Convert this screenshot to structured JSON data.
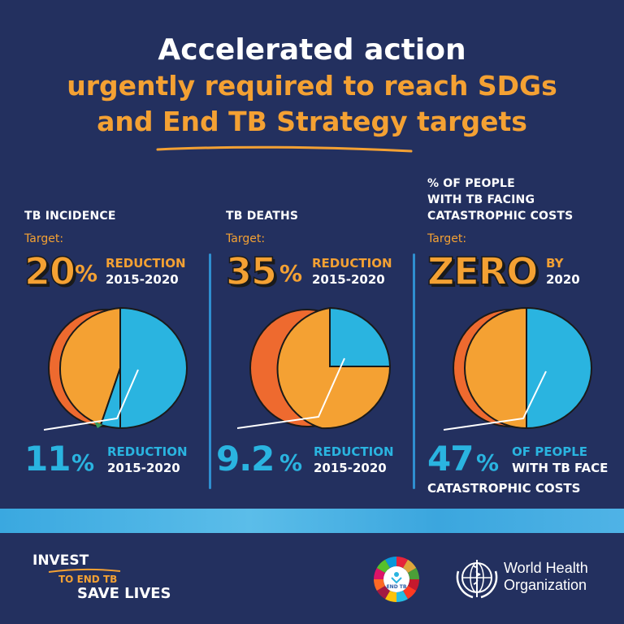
{
  "title": {
    "line1": "Accelerated action",
    "line2": "urgently required to reach SDGs",
    "line3": "and End TB Strategy targets"
  },
  "columns": [
    {
      "label": "TB INCIDENCE",
      "target_label": "Target:",
      "target_value": "20",
      "target_unit": "%",
      "target_side_top": "REDUCTION",
      "target_side_bottom": "2015-2020",
      "result_value": "11",
      "result_unit": "%",
      "result_side_top": "REDUCTION",
      "result_side_bottom": "2015-2020"
    },
    {
      "label": "TB DEATHS",
      "target_label": "Target:",
      "target_value": "35",
      "target_unit": "%",
      "target_side_top": "REDUCTION",
      "target_side_bottom": "2015-2020",
      "result_value": "9.2",
      "result_unit": "%",
      "result_side_top": "REDUCTION",
      "result_side_bottom": "2015-2020"
    },
    {
      "label_lines": [
        "% OF PEOPLE",
        "WITH TB FACING",
        "CATASTROPHIC COSTS"
      ],
      "target_label": "Target:",
      "target_value": "ZERO",
      "target_side_top": "BY",
      "target_side_bottom": "2020",
      "result_value": "47",
      "result_unit": "%",
      "result_side_top": "OF PEOPLE",
      "result_side_bottom": "WITH TB FACE",
      "result_extra": "CATASTROPHIC COSTS"
    }
  ],
  "footer": {
    "invest": "INVEST",
    "to_end": "TO END TB",
    "save": "SAVE LIVES",
    "sdg_badge": "END TB",
    "who_line1": "World Health",
    "who_line2": "Organization"
  },
  "colors": {
    "background": "#23305f",
    "orange": "#f4a133",
    "blue": "#2ab4e0",
    "red_orange": "#ee6a2f"
  }
}
